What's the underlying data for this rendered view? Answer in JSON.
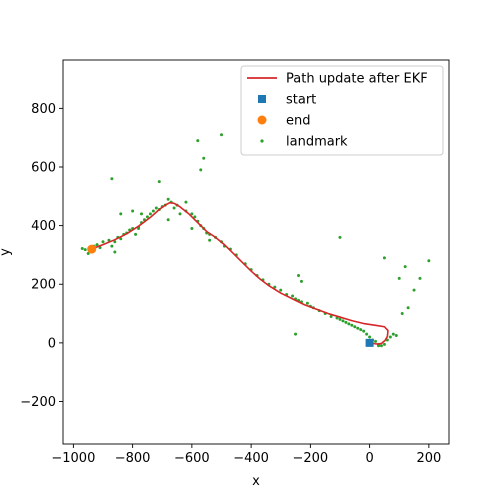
{
  "chart_data": {
    "type": "scatter",
    "xlabel": "x",
    "ylabel": "y",
    "xlim": [
      -1035,
      268
    ],
    "ylim": [
      -345,
      965
    ],
    "xticks": [
      -1000,
      -800,
      -600,
      -400,
      -200,
      0,
      200
    ],
    "yticks": [
      -200,
      0,
      200,
      400,
      600,
      800
    ],
    "xtick_labels": [
      "−1000",
      "−800",
      "−600",
      "−400",
      "−200",
      "0",
      "200"
    ],
    "ytick_labels": [
      "−200",
      "0",
      "200",
      "400",
      "600",
      "800"
    ],
    "grid": false,
    "legend_position": "top-right",
    "legend": [
      {
        "label": "Path update after EKF",
        "kind": "line",
        "color": "#d62728"
      },
      {
        "label": "start",
        "kind": "square",
        "color": "#1f77b4"
      },
      {
        "label": "end",
        "kind": "circle",
        "color": "#ff7f0e"
      },
      {
        "label": "landmark",
        "kind": "dot",
        "color": "#2ca02c"
      }
    ],
    "path": {
      "color": "#d62728",
      "x": [
        -940,
        -900,
        -860,
        -820,
        -780,
        -740,
        -710,
        -690,
        -675,
        -660,
        -640,
        -610,
        -580,
        -550,
        -520,
        -490,
        -460,
        -430,
        -400,
        -370,
        -340,
        -300,
        -260,
        -220,
        -180,
        -140,
        -100,
        -60,
        -20,
        20,
        50,
        62,
        60,
        52,
        40,
        28,
        18,
        8,
        0
      ],
      "y": [
        320,
        335,
        352,
        372,
        398,
        428,
        455,
        470,
        478,
        476,
        464,
        440,
        410,
        380,
        360,
        335,
        305,
        275,
        245,
        218,
        195,
        170,
        150,
        130,
        115,
        100,
        88,
        76,
        66,
        60,
        55,
        42,
        22,
        8,
        -2,
        -4,
        -3,
        -1,
        0
      ]
    },
    "start": {
      "x": 0,
      "y": 0,
      "color": "#1f77b4"
    },
    "end": {
      "x": -938,
      "y": 320,
      "color": "#ff7f0e"
    },
    "landmarks": {
      "color": "#2ca02c",
      "x": [
        -970,
        -960,
        -950,
        -930,
        -920,
        -910,
        -900,
        -880,
        -870,
        -860,
        -850,
        -840,
        -830,
        -820,
        -810,
        -800,
        -790,
        -780,
        -770,
        -760,
        -750,
        -740,
        -730,
        -720,
        -710,
        -700,
        -690,
        -680,
        -670,
        -660,
        -650,
        -620,
        -600,
        -590,
        -580,
        -570,
        -560,
        -550,
        -540,
        -520,
        -500,
        -490,
        -470,
        -450,
        -420,
        -400,
        -380,
        -360,
        -340,
        -320,
        -300,
        -280,
        -260,
        -250,
        -240,
        -230,
        -210,
        -200,
        -190,
        -170,
        -150,
        -130,
        -110,
        -100,
        -90,
        -80,
        -70,
        -60,
        -50,
        -40,
        -30,
        -20,
        -10,
        0,
        10,
        20,
        30,
        40,
        50,
        60,
        70,
        80,
        90,
        110,
        130,
        150,
        170,
        200,
        120,
        100,
        50,
        30,
        -870,
        -710,
        -580,
        -560,
        -500,
        -570,
        -840,
        -800,
        -780,
        -250,
        -230,
        -240,
        -680,
        -640,
        -620,
        -770,
        -600,
        -540,
        -860,
        -100
      ],
      "y": [
        322,
        318,
        305,
        330,
        335,
        325,
        345,
        350,
        330,
        345,
        360,
        355,
        370,
        375,
        385,
        390,
        370,
        395,
        410,
        420,
        430,
        440,
        450,
        460,
        455,
        465,
        470,
        490,
        480,
        460,
        470,
        480,
        440,
        430,
        415,
        400,
        390,
        375,
        370,
        360,
        345,
        330,
        320,
        300,
        270,
        250,
        230,
        215,
        200,
        190,
        180,
        165,
        160,
        150,
        145,
        140,
        135,
        125,
        120,
        110,
        100,
        90,
        85,
        80,
        75,
        70,
        65,
        60,
        55,
        50,
        45,
        40,
        30,
        20,
        10,
        5,
        -5,
        -10,
        -5,
        10,
        20,
        30,
        25,
        100,
        120,
        180,
        220,
        280,
        260,
        220,
        290,
        -10,
        560,
        550,
        690,
        630,
        710,
        590,
        440,
        450,
        390,
        30,
        210,
        230,
        420,
        440,
        450,
        440,
        390,
        350,
        310,
        360
      ]
    }
  }
}
